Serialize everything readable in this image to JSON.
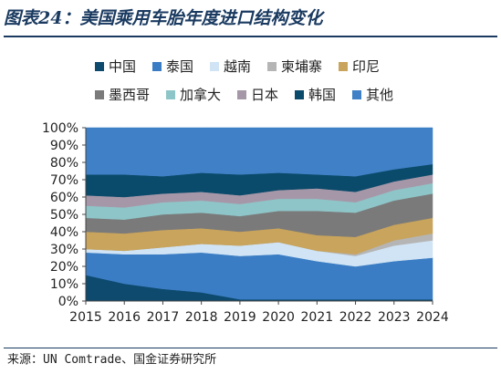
{
  "title": "图表24：美国乘用车胎年度进口结构变化",
  "source": "来源：UN Comtrade、国金证券研究所",
  "chart_data": {
    "type": "area",
    "stacked": true,
    "percent": true,
    "x": [
      "2015",
      "2016",
      "2017",
      "2018",
      "2019",
      "2020",
      "2021",
      "2022",
      "2023",
      "2024"
    ],
    "ylim": [
      0,
      100
    ],
    "yticks": [
      "0%",
      "10%",
      "20%",
      "30%",
      "40%",
      "50%",
      "60%",
      "70%",
      "80%",
      "90%",
      "100%"
    ],
    "legend_position": "top",
    "series": [
      {
        "name": "中国",
        "color": "#0d4a6e",
        "values": [
          15,
          10,
          7,
          5,
          1,
          1,
          1,
          1,
          1,
          1
        ]
      },
      {
        "name": "泰国",
        "color": "#3b7dc4",
        "values": [
          13,
          17,
          20,
          23,
          25,
          26,
          22,
          19,
          22,
          24
        ]
      },
      {
        "name": "越南",
        "color": "#d0e4f5",
        "values": [
          2,
          2,
          4,
          5,
          6,
          7,
          6,
          6,
          9,
          10
        ]
      },
      {
        "name": "柬埔寨",
        "color": "#b5b5b5",
        "values": [
          0,
          0,
          0,
          0,
          0,
          0,
          0,
          1,
          3,
          4
        ]
      },
      {
        "name": "印尼",
        "color": "#c9a45c",
        "values": [
          10,
          10,
          10,
          9,
          8,
          8,
          9,
          10,
          9,
          9
        ]
      },
      {
        "name": "墨西哥",
        "color": "#7a7a7a",
        "values": [
          8,
          8,
          9,
          9,
          9,
          10,
          14,
          14,
          14,
          14
        ]
      },
      {
        "name": "加拿大",
        "color": "#8ec5c8",
        "values": [
          7,
          7,
          7,
          7,
          7,
          7,
          7,
          6,
          6,
          6
        ]
      },
      {
        "name": "日本",
        "color": "#a697a8",
        "values": [
          6,
          6,
          5,
          5,
          5,
          5,
          6,
          6,
          5,
          5
        ]
      },
      {
        "name": "韩国",
        "color": "#0a4a6a",
        "values": [
          12,
          13,
          10,
          11,
          12,
          10,
          8,
          9,
          7,
          6
        ]
      },
      {
        "name": "其他",
        "color": "#3f80c6",
        "values": [
          27,
          27,
          28,
          26,
          27,
          26,
          27,
          28,
          24,
          21
        ]
      }
    ]
  }
}
